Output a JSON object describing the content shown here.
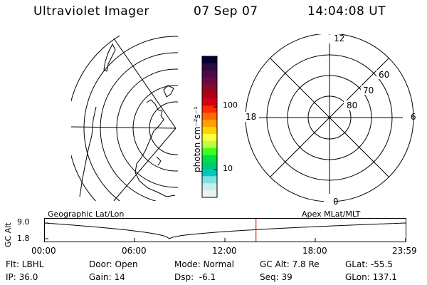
{
  "header": {
    "title": "Ultraviolet Imager",
    "date": "07 Sep 07",
    "time": "14:04:08 UT"
  },
  "colorbar": {
    "unit_label": "photon cm⁻²s⁻¹",
    "ticks": [
      "100",
      "10"
    ],
    "colors": [
      "#000033",
      "#2a0a40",
      "#4a0a4a",
      "#6a0a40",
      "#8a0a2a",
      "#b00018",
      "#d80010",
      "#ff2a00",
      "#ff6a00",
      "#ffa000",
      "#ffd400",
      "#ffff40",
      "#b8ff40",
      "#40ff20",
      "#00e040",
      "#00c878",
      "#00c8c0",
      "#80e0e0",
      "#c8ecec",
      "#e8f4f4"
    ]
  },
  "right_plot": {
    "mlt_labels": [
      "12",
      "18",
      "6",
      "0"
    ],
    "lat_labels": [
      "60",
      "70",
      "80"
    ]
  },
  "timeline": {
    "left_label": "Geographic Lat/Lon",
    "right_label": "Apex MLat/MLT",
    "y_axis_label": "GC Alt",
    "y_ticks": [
      "9.0",
      "1.8"
    ],
    "x_ticks": [
      "00:00",
      "06:00",
      "12:00",
      "18:00",
      "23:59"
    ],
    "marker_time": "14:04",
    "marker_color": "#cc0000"
  },
  "status": {
    "rows": [
      [
        "Flt: LBHL",
        "Door: Open",
        "Mode: Normal",
        "GC Alt: 7.8 Re",
        "GLat: -55.5"
      ],
      [
        "IP: 36.0",
        "Gain: 14",
        "Dsp:  -6.1",
        "Seq: 39",
        "GLon: 137.1"
      ]
    ]
  }
}
